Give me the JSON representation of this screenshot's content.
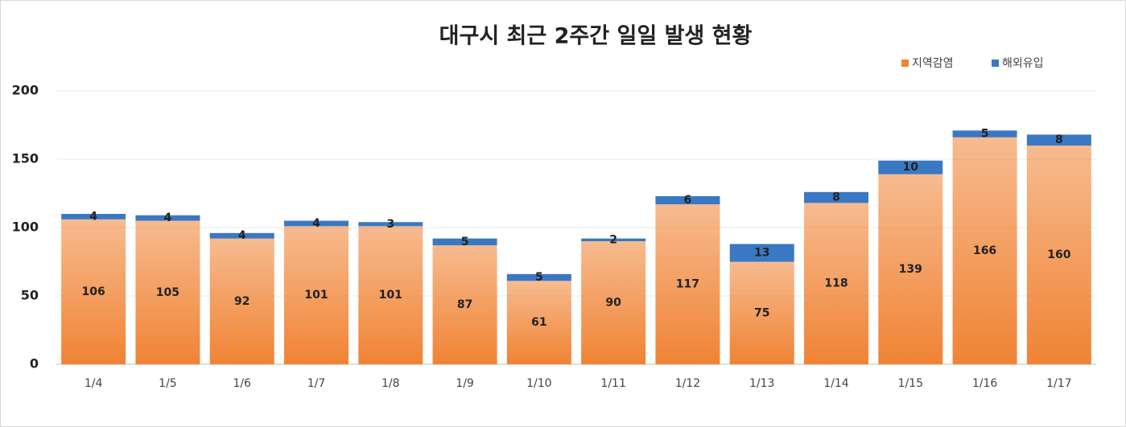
{
  "chart_data": {
    "type": "stacked_bar",
    "title": "대구시 최근 2주간 일일 발생 현황",
    "categories": [
      "1/4",
      "1/5",
      "1/6",
      "1/7",
      "1/8",
      "1/9",
      "1/10",
      "1/11",
      "1/12",
      "1/13",
      "1/14",
      "1/15",
      "1/16",
      "1/17"
    ],
    "series": [
      {
        "name": "지역감염",
        "color": "#f08334",
        "values": [
          106,
          105,
          92,
          101,
          101,
          87,
          61,
          90,
          117,
          75,
          118,
          139,
          166,
          160
        ]
      },
      {
        "name": "해외유입",
        "color": "#3b78c3",
        "values": [
          4,
          4,
          4,
          4,
          3,
          5,
          5,
          2,
          6,
          13,
          8,
          10,
          5,
          8
        ]
      }
    ],
    "ylim": [
      0,
      200
    ],
    "yticks": [
      0,
      50,
      100,
      150,
      200
    ],
    "grid": true,
    "legend": "top-right"
  }
}
